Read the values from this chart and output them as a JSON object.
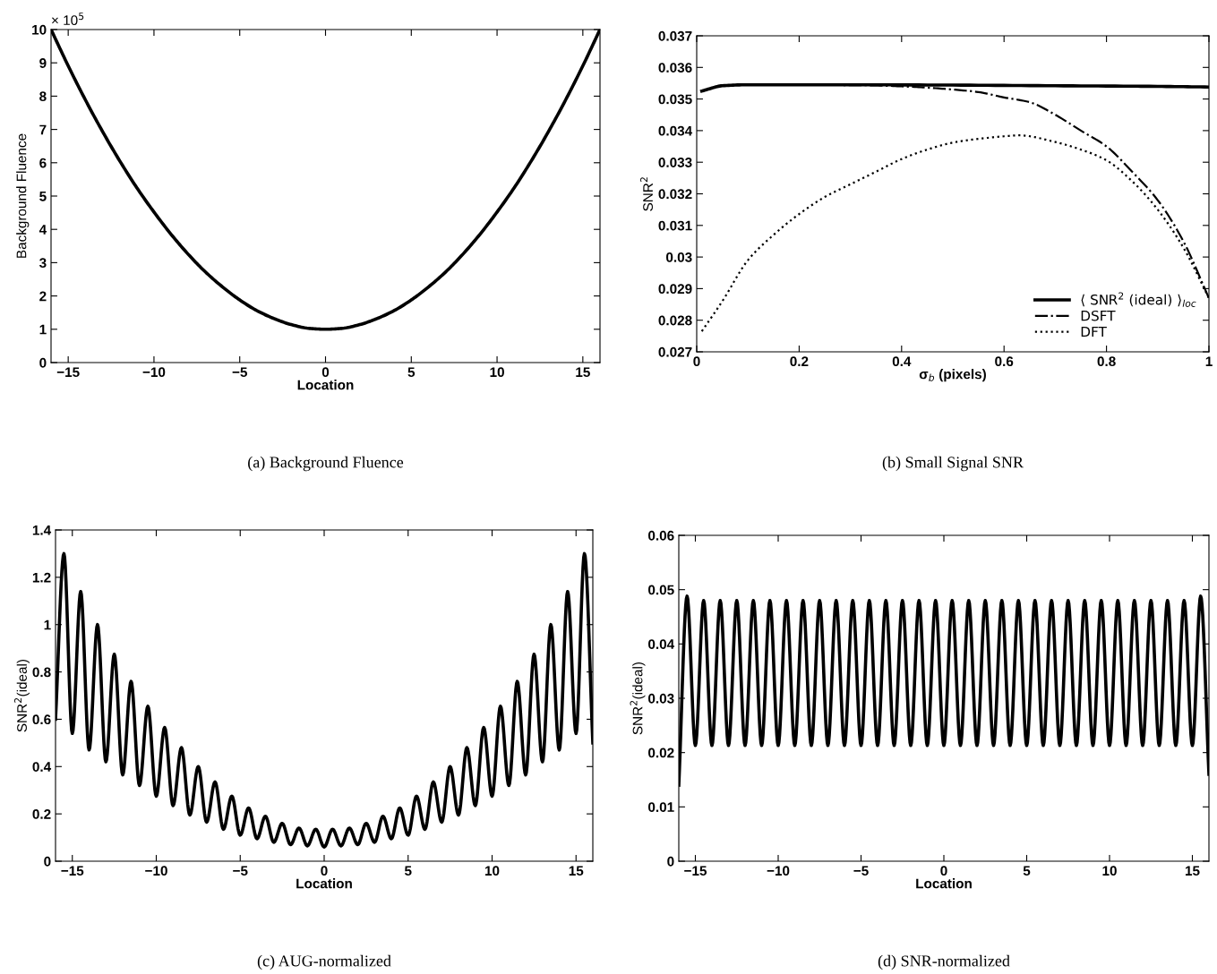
{
  "chart_data": [
    {
      "type": "line",
      "title": "(a) Background Fluence",
      "xlabel": "Location",
      "ylabel": "Background Fluence",
      "annotations": [
        "× 10$^{5}$"
      ],
      "xlim": [
        -16,
        16
      ],
      "ylim": [
        0,
        10
      ],
      "xticks": [
        {
          "value": -15,
          "label": "−15"
        },
        {
          "value": -10,
          "label": "−10"
        },
        {
          "value": -5,
          "label": "−5"
        },
        0,
        5,
        10,
        15
      ],
      "yticks": [
        0,
        1,
        2,
        3,
        4,
        5,
        6,
        7,
        8,
        9,
        10
      ],
      "series": [
        {
          "color": "#000000",
          "line_style": "solid",
          "x": [
            -16,
            -15,
            -14,
            -13,
            -12,
            -11,
            -10,
            -9,
            -8,
            -7,
            -6,
            -5,
            -4,
            -3,
            -2,
            -1,
            0,
            1,
            2,
            3,
            4,
            5,
            6,
            7,
            8,
            9,
            10,
            11,
            12,
            13,
            14,
            15,
            16
          ],
          "values": [
            10,
            8.91,
            7.89,
            6.94,
            6.06,
            5.25,
            4.52,
            3.85,
            3.25,
            2.72,
            2.27,
            1.88,
            1.56,
            1.32,
            1.14,
            1.03,
            1,
            1.03,
            1.14,
            1.32,
            1.56,
            1.88,
            2.27,
            2.72,
            3.25,
            3.85,
            4.52,
            5.25,
            6.06,
            6.94,
            7.89,
            8.91,
            10
          ]
        }
      ]
    },
    {
      "type": "line",
      "title": "(b) Small Signal SNR",
      "xlabel": "σ$_{b}$ (pixels)",
      "ylabel": "SNR$^{2}$",
      "legend": "lower right",
      "xlim": [
        0,
        1
      ],
      "ylim": [
        0.027,
        0.037
      ],
      "xticks": [
        0,
        0.2,
        0.4,
        0.6,
        0.8,
        1
      ],
      "yticks": [
        0.027,
        0.028,
        0.029,
        0.03,
        0.031,
        0.032,
        0.033,
        0.034,
        0.035,
        0.036,
        0.037
      ],
      "series": [
        {
          "name": "⟨ SNR$^{2}$ (ideal) ⟩$_{loc}$",
          "color": "#000000",
          "line_style": "solid",
          "x": [
            0.01,
            0.02,
            0.05,
            0.1,
            0.3,
            0.5,
            0.7,
            0.9,
            1.0
          ],
          "values": [
            0.03525,
            0.0353,
            0.03542,
            0.03545,
            0.03545,
            0.03544,
            0.03542,
            0.0354,
            0.03538
          ]
        },
        {
          "name": "DSFT",
          "color": "#000000",
          "line_style": "dashdot",
          "x": [
            0.01,
            0.02,
            0.05,
            0.1,
            0.3,
            0.35,
            0.4,
            0.45,
            0.5,
            0.55,
            0.6,
            0.65,
            0.7,
            0.75,
            0.8,
            0.85,
            0.9,
            0.95,
            1.0
          ],
          "values": [
            0.03525,
            0.0353,
            0.03542,
            0.03545,
            0.03544,
            0.03543,
            0.0354,
            0.03536,
            0.0353,
            0.03522,
            0.03505,
            0.0349,
            0.0345,
            0.034,
            0.0335,
            0.0327,
            0.0318,
            0.0305,
            0.0287
          ]
        },
        {
          "name": "DFT",
          "color": "#000000",
          "line_style": "dotted",
          "x": [
            0.01,
            0.05,
            0.1,
            0.15,
            0.2,
            0.25,
            0.3,
            0.35,
            0.4,
            0.45,
            0.5,
            0.55,
            0.6,
            0.63,
            0.7,
            0.75,
            0.8,
            0.85,
            0.9,
            0.95,
            1.0
          ],
          "values": [
            0.02765,
            0.0286,
            0.0299,
            0.0307,
            0.03136,
            0.0319,
            0.0323,
            0.0327,
            0.0331,
            0.0334,
            0.03362,
            0.03374,
            0.03382,
            0.03385,
            0.03364,
            0.0334,
            0.03306,
            0.0324,
            0.0315,
            0.0303,
            0.0287
          ]
        }
      ]
    },
    {
      "type": "line",
      "title": "(c) AUG-normalized",
      "xlabel": "Location",
      "ylabel": "SNR$^{2}$(ideal)",
      "xlim": [
        -16,
        16
      ],
      "ylim": [
        0,
        1.4
      ],
      "xticks": [
        {
          "value": -15,
          "label": "−15"
        },
        {
          "value": -10,
          "label": "−10"
        },
        {
          "value": -5,
          "label": "−5"
        },
        0,
        5,
        10,
        15
      ],
      "yticks": [
        0,
        0.2,
        0.4,
        0.6,
        0.8,
        1,
        1.2,
        1.4
      ],
      "series": [
        {
          "color": "#000000",
          "line_style": "solid",
          "x": [
            -16,
            -15.5,
            -15,
            -14.5,
            -14,
            -13.5,
            -13,
            -12.5,
            -12,
            -11.5,
            -11,
            -10.5,
            -10,
            -9.5,
            -9,
            -8.5,
            -8,
            -7.5,
            -7,
            -6.5,
            -6,
            -5.5,
            -5,
            -4.5,
            -4,
            -3.5,
            -3,
            -2.5,
            -2,
            -1.5,
            -1,
            -0.5,
            0,
            0.5,
            1,
            1.5,
            2,
            2.5,
            3,
            3.5,
            4,
            4.5,
            5,
            5.5,
            6,
            6.5,
            7,
            7.5,
            8,
            8.5,
            9,
            9.5,
            10,
            10.5,
            11,
            11.5,
            12,
            12.5,
            13,
            13.5,
            14,
            14.5,
            15,
            15.5,
            16
          ],
          "values": [
            0.6,
            1.3,
            0.54,
            1.14,
            0.47,
            1.0,
            0.42,
            0.875,
            0.365,
            0.76,
            0.32,
            0.655,
            0.275,
            0.565,
            0.235,
            0.48,
            0.195,
            0.4,
            0.165,
            0.335,
            0.135,
            0.275,
            0.11,
            0.225,
            0.095,
            0.19,
            0.08,
            0.16,
            0.07,
            0.14,
            0.065,
            0.135,
            0.06,
            0.135,
            0.065,
            0.14,
            0.07,
            0.16,
            0.08,
            0.19,
            0.095,
            0.225,
            0.11,
            0.275,
            0.135,
            0.335,
            0.165,
            0.4,
            0.195,
            0.48,
            0.235,
            0.565,
            0.275,
            0.655,
            0.32,
            0.76,
            0.365,
            0.875,
            0.42,
            1.0,
            0.47,
            1.14,
            0.54,
            1.3,
            0.5
          ]
        }
      ]
    },
    {
      "type": "line",
      "title": "(d) SNR-normalized",
      "xlabel": "Location",
      "ylabel": "SNR$^{2}$(ideal)",
      "xlim": [
        -16,
        16
      ],
      "ylim": [
        0,
        0.06
      ],
      "xticks": [
        {
          "value": -15,
          "label": "−15"
        },
        {
          "value": -10,
          "label": "−10"
        },
        {
          "value": -5,
          "label": "−5"
        },
        0,
        5,
        10,
        15
      ],
      "yticks": [
        0,
        0.01,
        0.02,
        0.03,
        0.04,
        0.05,
        0.06
      ],
      "series": [
        {
          "color": "#000000",
          "line_style": "solid",
          "x": [
            -16,
            -15.5,
            -15,
            -14.5,
            -14,
            -13.5,
            -13,
            -12.5,
            -12,
            -11.5,
            -11,
            -10.5,
            -10,
            -9.5,
            -9,
            -8.5,
            -8,
            -7.5,
            -7,
            -6.5,
            -6,
            -5.5,
            -5,
            -4.5,
            -4,
            -3.5,
            -3,
            -2.5,
            -2,
            -1.5,
            -1,
            -0.5,
            0,
            0.5,
            1,
            1.5,
            2,
            2.5,
            3,
            3.5,
            4,
            4.5,
            5,
            5.5,
            6,
            6.5,
            7,
            7.5,
            8,
            8.5,
            9,
            9.5,
            10,
            10.5,
            11,
            11.5,
            12,
            12.5,
            13,
            13.5,
            14,
            14.5,
            15,
            15.5,
            16
          ],
          "values": [
            0.014,
            0.0488,
            0.0213,
            0.048,
            0.0213,
            0.048,
            0.0213,
            0.048,
            0.0213,
            0.048,
            0.0213,
            0.048,
            0.0213,
            0.048,
            0.0213,
            0.048,
            0.0213,
            0.048,
            0.0213,
            0.048,
            0.0213,
            0.048,
            0.0213,
            0.048,
            0.0213,
            0.048,
            0.0213,
            0.048,
            0.0213,
            0.048,
            0.0213,
            0.048,
            0.0213,
            0.048,
            0.0213,
            0.048,
            0.0213,
            0.048,
            0.0213,
            0.048,
            0.0213,
            0.048,
            0.0213,
            0.048,
            0.0213,
            0.048,
            0.0213,
            0.048,
            0.0213,
            0.048,
            0.0213,
            0.048,
            0.0213,
            0.048,
            0.0213,
            0.048,
            0.0213,
            0.048,
            0.0213,
            0.048,
            0.0213,
            0.048,
            0.0213,
            0.0488,
            0.016
          ]
        }
      ]
    }
  ]
}
